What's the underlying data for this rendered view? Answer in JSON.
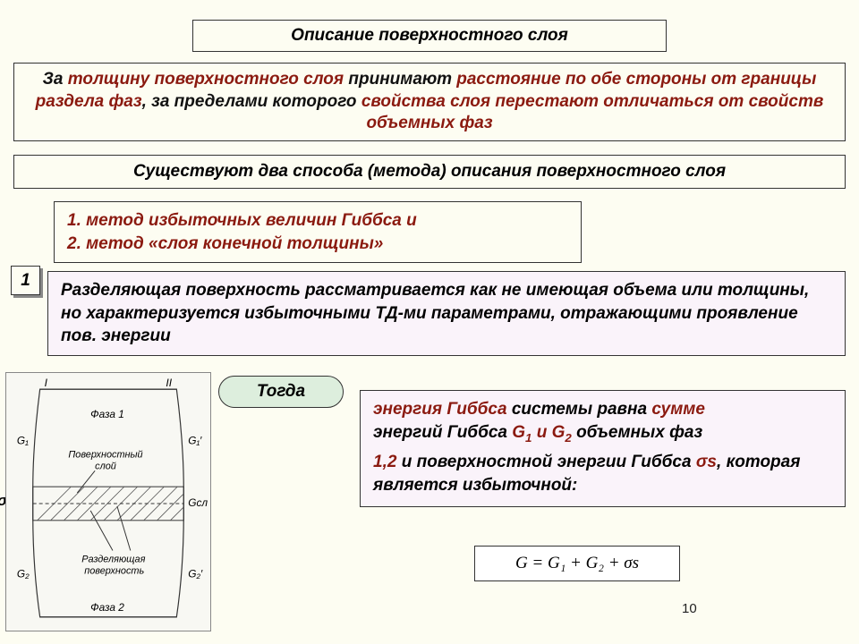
{
  "title": "Описание поверхностного слоя",
  "definition": {
    "parts": [
      {
        "t": "За ",
        "c": "black"
      },
      {
        "t": "толщину поверхностного слоя ",
        "c": "red"
      },
      {
        "t": "принимают ",
        "c": "black"
      },
      {
        "t": "расстояние по обе стороны от границы раздела фаз",
        "c": "red"
      },
      {
        "t": ", за пределами которого ",
        "c": "black"
      },
      {
        "t": "свойства слоя перестают отличаться от свойств объемных фаз",
        "c": "red"
      }
    ]
  },
  "methods_title": "Существуют два способа (метода) описания поверхностного слоя",
  "methods": {
    "item1": "1.  метод избыточных величин Гиббса и",
    "item2": "2.  метод «слоя конечной толщины»"
  },
  "marker1": "1",
  "description": "Разделяющая поверхность рассматривается как не имеющая объема или толщины, но характеризуется избыточными ТД-ми параметрами, отражающими проявление пов. энергии",
  "togda": "Тогда",
  "gibbs_text": {
    "l1a": "энергия Гиббса ",
    "l1b": "системы равна ",
    "l1c": "сумме",
    "l2a": "энергий Гиббса ",
    "l2b": "G",
    "l2c": " и G",
    "l2d": " объемных фаз",
    "l3a": "1,2 ",
    "l3b": "и поверхностной энергии Гиббса ",
    "l3c": "σs",
    "l3d": ", которая является избыточной:"
  },
  "formula": "G = G₁ + G₂ + σs",
  "page_num": "10",
  "sigma_label": "σs",
  "diagram": {
    "labels": {
      "I": "I",
      "II": "II",
      "phase1": "Фаза 1",
      "phase2": "Фаза 2",
      "surf_layer1": "Поверхностный",
      "surf_layer2": "слой",
      "dividing1": "Разделяющая",
      "dividing2": "поверхность",
      "G1": "G₁",
      "G1p": "G₁′",
      "G2": "G₂",
      "G2p": "G₂′",
      "Gsl": "Gсл"
    }
  },
  "colors": {
    "bg": "#fdfdf2",
    "red": "#8b1a10",
    "pink": "#faf3fa",
    "green": "#ddeedd",
    "border": "#333"
  }
}
